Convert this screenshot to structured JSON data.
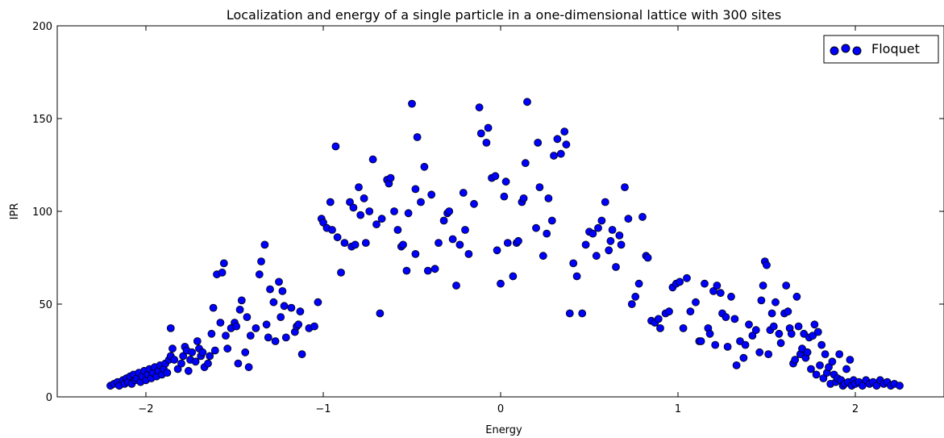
{
  "chart_data": {
    "type": "scatter",
    "title": "Localization and energy of a single particle in a one-dimensional lattice with 300 sites",
    "xlabel": "Energy",
    "ylabel": "IPR",
    "xlim": [
      -2.5,
      2.5
    ],
    "ylim": [
      0,
      200
    ],
    "x_ticks": [
      -2,
      -1,
      0,
      1,
      2
    ],
    "x_tick_labels": [
      "−2",
      "−1",
      "0",
      "1",
      "2"
    ],
    "y_ticks": [
      0,
      50,
      100,
      150,
      200
    ],
    "y_tick_labels": [
      "0",
      "50",
      "100",
      "150",
      "200"
    ],
    "grid": false,
    "legend_position": "top-right",
    "marker_color": "#0000ff",
    "series": [
      {
        "name": "Floquet",
        "points": [
          [
            -2.2,
            6
          ],
          [
            -2.18,
            7
          ],
          [
            -2.16,
            8
          ],
          [
            -2.15,
            6
          ],
          [
            -2.13,
            9
          ],
          [
            -2.12,
            7
          ],
          [
            -2.11,
            10
          ],
          [
            -2.1,
            8
          ],
          [
            -2.09,
            11
          ],
          [
            -2.08,
            7
          ],
          [
            -2.07,
            12
          ],
          [
            -2.06,
            9
          ],
          [
            -2.05,
            10
          ],
          [
            -2.04,
            13
          ],
          [
            -2.03,
            8
          ],
          [
            -2.02,
            11
          ],
          [
            -2.01,
            14
          ],
          [
            -2.0,
            9
          ],
          [
            -1.99,
            12
          ],
          [
            -1.98,
            15
          ],
          [
            -1.97,
            10
          ],
          [
            -1.96,
            13
          ],
          [
            -1.95,
            16
          ],
          [
            -1.94,
            11
          ],
          [
            -1.93,
            14
          ],
          [
            -1.92,
            17
          ],
          [
            -1.91,
            12
          ],
          [
            -1.9,
            15
          ],
          [
            -1.89,
            18
          ],
          [
            -1.88,
            13
          ],
          [
            -1.87,
            20
          ],
          [
            -1.86,
            22
          ],
          [
            -1.85,
            26
          ],
          [
            -1.86,
            37
          ],
          [
            -1.84,
            20
          ],
          [
            -1.82,
            15
          ],
          [
            -1.8,
            18
          ],
          [
            -1.79,
            22
          ],
          [
            -1.78,
            27
          ],
          [
            -1.77,
            25
          ],
          [
            -1.76,
            14
          ],
          [
            -1.75,
            20
          ],
          [
            -1.74,
            24
          ],
          [
            -1.72,
            19
          ],
          [
            -1.71,
            30
          ],
          [
            -1.7,
            26
          ],
          [
            -1.69,
            22
          ],
          [
            -1.68,
            24
          ],
          [
            -1.67,
            16
          ],
          [
            -1.65,
            18
          ],
          [
            -1.64,
            22
          ],
          [
            -1.63,
            34
          ],
          [
            -1.62,
            48
          ],
          [
            -1.61,
            25
          ],
          [
            -1.6,
            66
          ],
          [
            -1.58,
            40
          ],
          [
            -1.57,
            67
          ],
          [
            -1.56,
            72
          ],
          [
            -1.55,
            33
          ],
          [
            -1.54,
            26
          ],
          [
            -1.52,
            37
          ],
          [
            -1.5,
            40
          ],
          [
            -1.49,
            38
          ],
          [
            -1.48,
            18
          ],
          [
            -1.47,
            47
          ],
          [
            -1.46,
            52
          ],
          [
            -1.44,
            24
          ],
          [
            -1.43,
            43
          ],
          [
            -1.42,
            16
          ],
          [
            -1.41,
            33
          ],
          [
            -1.38,
            37
          ],
          [
            -1.36,
            66
          ],
          [
            -1.35,
            73
          ],
          [
            -1.33,
            82
          ],
          [
            -1.32,
            39
          ],
          [
            -1.31,
            32
          ],
          [
            -1.3,
            58
          ],
          [
            -1.28,
            51
          ],
          [
            -1.27,
            30
          ],
          [
            -1.25,
            62
          ],
          [
            -1.24,
            43
          ],
          [
            -1.23,
            57
          ],
          [
            -1.22,
            49
          ],
          [
            -1.21,
            32
          ],
          [
            -1.18,
            48
          ],
          [
            -1.16,
            35
          ],
          [
            -1.15,
            38
          ],
          [
            -1.14,
            39
          ],
          [
            -1.13,
            46
          ],
          [
            -1.12,
            23
          ],
          [
            -1.08,
            37
          ],
          [
            -1.05,
            38
          ],
          [
            -1.03,
            51
          ],
          [
            -1.01,
            96
          ],
          [
            -1.0,
            94
          ],
          [
            -0.98,
            91
          ],
          [
            -0.96,
            105
          ],
          [
            -0.95,
            90
          ],
          [
            -0.93,
            135
          ],
          [
            -0.92,
            86
          ],
          [
            -0.9,
            67
          ],
          [
            -0.88,
            83
          ],
          [
            -0.85,
            105
          ],
          [
            -0.84,
            81
          ],
          [
            -0.83,
            102
          ],
          [
            -0.82,
            82
          ],
          [
            -0.8,
            113
          ],
          [
            -0.79,
            98
          ],
          [
            -0.77,
            107
          ],
          [
            -0.76,
            83
          ],
          [
            -0.74,
            100
          ],
          [
            -0.72,
            128
          ],
          [
            -0.7,
            93
          ],
          [
            -0.68,
            45
          ],
          [
            -0.67,
            96
          ],
          [
            -0.64,
            117
          ],
          [
            -0.63,
            115
          ],
          [
            -0.62,
            118
          ],
          [
            -0.6,
            100
          ],
          [
            -0.58,
            90
          ],
          [
            -0.56,
            81
          ],
          [
            -0.55,
            82
          ],
          [
            -0.53,
            68
          ],
          [
            -0.52,
            99
          ],
          [
            -0.5,
            158
          ],
          [
            -0.48,
            77
          ],
          [
            -0.48,
            112
          ],
          [
            -0.47,
            140
          ],
          [
            -0.45,
            105
          ],
          [
            -0.43,
            124
          ],
          [
            -0.41,
            68
          ],
          [
            -0.39,
            109
          ],
          [
            -0.37,
            69
          ],
          [
            -0.35,
            83
          ],
          [
            -0.32,
            95
          ],
          [
            -0.3,
            99
          ],
          [
            -0.29,
            100
          ],
          [
            -0.27,
            85
          ],
          [
            -0.25,
            60
          ],
          [
            -0.23,
            82
          ],
          [
            -0.21,
            110
          ],
          [
            -0.2,
            90
          ],
          [
            -0.18,
            77
          ],
          [
            -0.15,
            104
          ],
          [
            -0.12,
            156
          ],
          [
            -0.11,
            142
          ],
          [
            -0.08,
            137
          ],
          [
            -0.07,
            145
          ],
          [
            -0.05,
            118
          ],
          [
            -0.03,
            119
          ],
          [
            -0.02,
            79
          ],
          [
            0.0,
            61
          ],
          [
            0.02,
            108
          ],
          [
            0.03,
            116
          ],
          [
            0.04,
            83
          ],
          [
            0.07,
            65
          ],
          [
            0.09,
            83
          ],
          [
            0.1,
            84
          ],
          [
            0.12,
            105
          ],
          [
            0.13,
            107
          ],
          [
            0.14,
            126
          ],
          [
            0.15,
            159
          ],
          [
            0.2,
            91
          ],
          [
            0.21,
            137
          ],
          [
            0.22,
            113
          ],
          [
            0.24,
            76
          ],
          [
            0.26,
            88
          ],
          [
            0.27,
            107
          ],
          [
            0.29,
            95
          ],
          [
            0.3,
            130
          ],
          [
            0.32,
            139
          ],
          [
            0.34,
            131
          ],
          [
            0.36,
            143
          ],
          [
            0.37,
            136
          ],
          [
            0.39,
            45
          ],
          [
            0.41,
            72
          ],
          [
            0.43,
            65
          ],
          [
            0.46,
            45
          ],
          [
            0.48,
            82
          ],
          [
            0.5,
            89
          ],
          [
            0.52,
            88
          ],
          [
            0.54,
            76
          ],
          [
            0.55,
            91
          ],
          [
            0.57,
            95
          ],
          [
            0.59,
            105
          ],
          [
            0.61,
            79
          ],
          [
            0.62,
            84
          ],
          [
            0.63,
            90
          ],
          [
            0.65,
            70
          ],
          [
            0.67,
            87
          ],
          [
            0.68,
            82
          ],
          [
            0.7,
            113
          ],
          [
            0.72,
            96
          ],
          [
            0.74,
            50
          ],
          [
            0.76,
            54
          ],
          [
            0.78,
            61
          ],
          [
            0.8,
            97
          ],
          [
            0.82,
            76
          ],
          [
            0.83,
            75
          ],
          [
            0.85,
            41
          ],
          [
            0.87,
            40
          ],
          [
            0.89,
            42
          ],
          [
            0.9,
            37
          ],
          [
            0.93,
            45
          ],
          [
            0.95,
            46
          ],
          [
            0.97,
            59
          ],
          [
            0.99,
            61
          ],
          [
            1.01,
            62
          ],
          [
            1.03,
            37
          ],
          [
            1.05,
            64
          ],
          [
            1.07,
            46
          ],
          [
            1.1,
            51
          ],
          [
            1.12,
            30
          ],
          [
            1.13,
            30
          ],
          [
            1.15,
            61
          ],
          [
            1.17,
            37
          ],
          [
            1.18,
            34
          ],
          [
            1.2,
            57
          ],
          [
            1.21,
            28
          ],
          [
            1.22,
            60
          ],
          [
            1.24,
            56
          ],
          [
            1.25,
            45
          ],
          [
            1.27,
            43
          ],
          [
            1.28,
            27
          ],
          [
            1.3,
            54
          ],
          [
            1.32,
            42
          ],
          [
            1.33,
            17
          ],
          [
            1.35,
            30
          ],
          [
            1.37,
            21
          ],
          [
            1.38,
            28
          ],
          [
            1.4,
            39
          ],
          [
            1.42,
            33
          ],
          [
            1.44,
            36
          ],
          [
            1.46,
            24
          ],
          [
            1.47,
            52
          ],
          [
            1.48,
            60
          ],
          [
            1.49,
            73
          ],
          [
            1.5,
            71
          ],
          [
            1.51,
            23
          ],
          [
            1.52,
            36
          ],
          [
            1.53,
            45
          ],
          [
            1.54,
            38
          ],
          [
            1.55,
            51
          ],
          [
            1.57,
            34
          ],
          [
            1.58,
            29
          ],
          [
            1.6,
            45
          ],
          [
            1.61,
            60
          ],
          [
            1.62,
            46
          ],
          [
            1.63,
            37
          ],
          [
            1.64,
            34
          ],
          [
            1.65,
            18
          ],
          [
            1.66,
            20
          ],
          [
            1.67,
            54
          ],
          [
            1.68,
            38
          ],
          [
            1.69,
            23
          ],
          [
            1.7,
            26
          ],
          [
            1.71,
            34
          ],
          [
            1.72,
            21
          ],
          [
            1.73,
            24
          ],
          [
            1.74,
            32
          ],
          [
            1.75,
            15
          ],
          [
            1.76,
            33
          ],
          [
            1.77,
            39
          ],
          [
            1.78,
            12
          ],
          [
            1.79,
            35
          ],
          [
            1.8,
            17
          ],
          [
            1.81,
            28
          ],
          [
            1.82,
            10
          ],
          [
            1.83,
            23
          ],
          [
            1.84,
            13
          ],
          [
            1.85,
            16
          ],
          [
            1.86,
            7
          ],
          [
            1.87,
            19
          ],
          [
            1.88,
            12
          ],
          [
            1.89,
            8
          ],
          [
            1.9,
            10
          ],
          [
            1.91,
            23
          ],
          [
            1.92,
            9
          ],
          [
            1.93,
            6
          ],
          [
            1.94,
            7
          ],
          [
            1.95,
            15
          ],
          [
            1.96,
            8
          ],
          [
            1.97,
            20
          ],
          [
            1.98,
            6
          ],
          [
            1.99,
            9
          ],
          [
            2.0,
            7
          ],
          [
            2.02,
            8
          ],
          [
            2.04,
            6
          ],
          [
            2.06,
            9
          ],
          [
            2.08,
            7
          ],
          [
            2.1,
            8
          ],
          [
            2.12,
            6
          ],
          [
            2.14,
            9
          ],
          [
            2.16,
            7
          ],
          [
            2.18,
            8
          ],
          [
            2.2,
            6
          ],
          [
            2.22,
            7
          ],
          [
            2.25,
            6
          ]
        ]
      }
    ]
  }
}
